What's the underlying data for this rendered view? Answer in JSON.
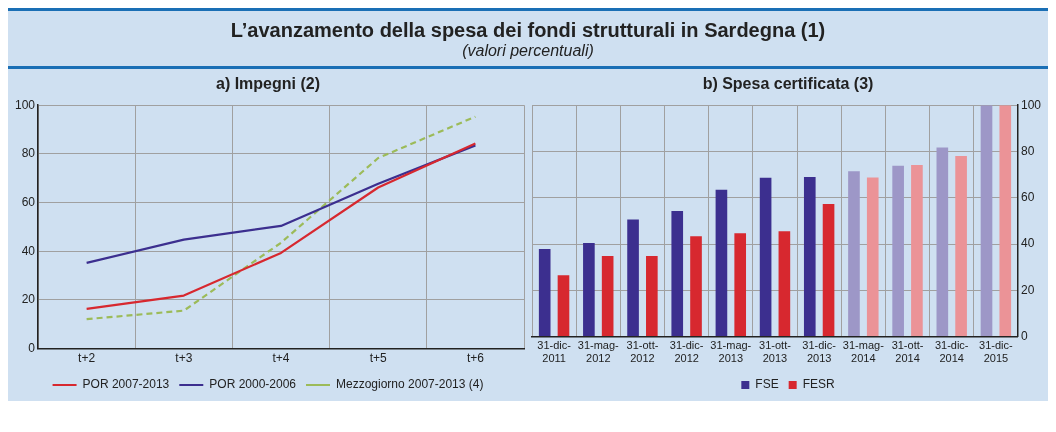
{
  "chart_data": [
    {
      "type": "line",
      "title": "a) Impegni (2)",
      "annotations": [
        "L’avanzamento della spesa dei fondi strutturali in Sardegna (1)",
        "(valori percentuali)"
      ],
      "categories": [
        "t+2",
        "t+3",
        "t+4",
        "t+5",
        "t+6"
      ],
      "series": [
        {
          "name": "POR 2007-2013",
          "color": "#d7282f",
          "values": [
            16.3,
            21.8,
            39.3,
            66.2,
            84.3
          ]
        },
        {
          "name": "POR 2000-2006",
          "color": "#3c2f8f",
          "values": [
            35.2,
            44.8,
            50.4,
            67.7,
            83.5
          ]
        },
        {
          "name": "Mezzogiorno 2007-2013 (4)",
          "color": "#9cbb59",
          "line_style": "dashed",
          "values": [
            12.1,
            15.6,
            43.5,
            78.3,
            95.3
          ]
        }
      ],
      "ylim": [
        0,
        100
      ],
      "yticks": [
        0,
        20,
        40,
        60,
        80,
        100
      ],
      "grid": true,
      "legend": "bottom",
      "marker": "none"
    },
    {
      "type": "bar",
      "title": "b) Spesa certificata (3)",
      "categories": [
        "31-dic-2011",
        "31-mag-2012",
        "31-ott-2012",
        "31-dic-2012",
        "31-mag-2013",
        "31-ott-2013",
        "31-dic-2013",
        "31-mag-2014",
        "31-ott-2014",
        "31-dic-2014",
        "31-dic-2015"
      ],
      "series": [
        {
          "name": "FSE",
          "color": "#3c2f8f",
          "axis": "y2",
          "colors": [
            "#3c2f8f",
            "#3c2f8f",
            "#3c2f8f",
            "#3c2f8f",
            "#3c2f8f",
            "#3c2f8f",
            "#3c2f8f",
            "#9d97c7",
            "#9d97c7",
            "#9d97c7",
            "#9d97c7"
          ],
          "values": [
            37.9,
            40.5,
            50.6,
            54.3,
            63.5,
            68.7,
            69.0,
            71.5,
            73.8,
            81.7,
            100
          ]
        },
        {
          "name": "FESR",
          "color": "#d7282f",
          "axis": "y2",
          "colors": [
            "#d7282f",
            "#d7282f",
            "#d7282f",
            "#d7282f",
            "#d7282f",
            "#d7282f",
            "#d7282f",
            "#eb9397",
            "#eb9397",
            "#eb9397",
            "#eb9397"
          ],
          "values": [
            26.5,
            34.8,
            34.8,
            43.4,
            44.7,
            45.5,
            57.3,
            68.8,
            74.2,
            78.0,
            100
          ]
        }
      ],
      "y2lim": [
        0,
        100
      ],
      "y2ticks": [
        0,
        20,
        40,
        60,
        80,
        100
      ],
      "grid": true,
      "legend": "bottom"
    }
  ]
}
